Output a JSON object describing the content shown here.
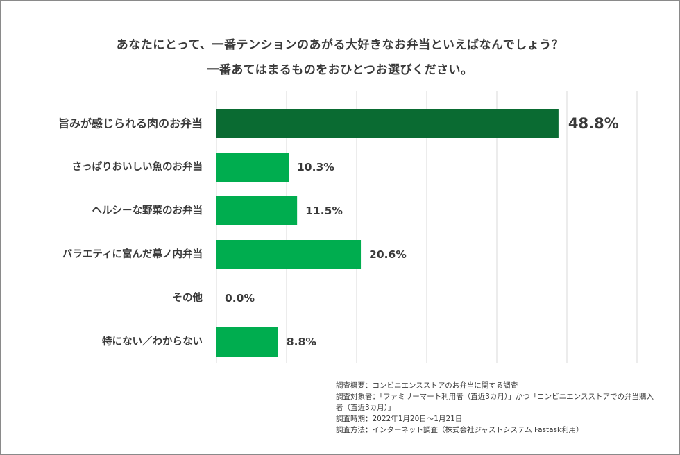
{
  "chart_data": {
    "type": "bar",
    "orientation": "horizontal",
    "title_lines": [
      "あなたにとって、一番テンションのあがる大好きなお弁当といえばなんでしょう？",
      "一番あてはまるものをおひとつお選びください。"
    ],
    "categories": [
      "旨みが感じられる肉のお弁当",
      "さっぱりおいしい魚のお弁当",
      "ヘルシーな野菜のお弁当",
      "バラエティに富んだ幕ノ内弁当",
      "その他",
      "特にない／わからない"
    ],
    "values": [
      48.8,
      10.3,
      11.5,
      20.6,
      0.0,
      8.8
    ],
    "value_labels": [
      "48.8%",
      "10.3%",
      "11.5%",
      "20.6%",
      "0.0%",
      "8.8%"
    ],
    "unit": "%",
    "xlim": [
      0,
      60
    ],
    "grid": true,
    "highlight_index": 0,
    "colors": {
      "highlight": "#0a6b32",
      "bar": "#00ad4f",
      "grid": "#d9d9d9",
      "text": "#3a3a3a"
    }
  },
  "notes": [
    "調査概要：コンビニエンスストアのお弁当に関する調査",
    "調査対象者：「ファミリーマート利用者（直近3カ月）」かつ「コンビニエンスストアでの弁当購入",
    "者（直近3カ月）」",
    "調査時期：2022年1月20日～1月21日",
    "調査方法：インターネット調査（株式会社ジャストシステム Fastask利用）"
  ]
}
